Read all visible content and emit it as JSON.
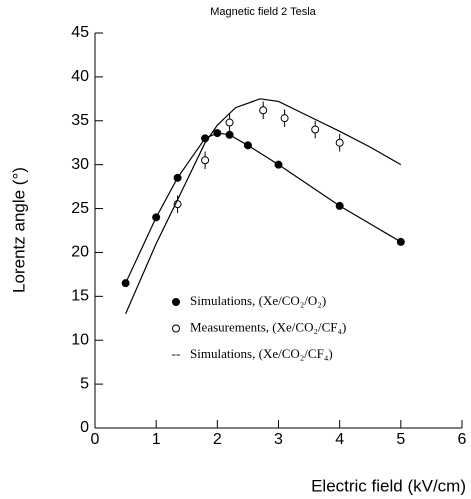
{
  "chart_data": {
    "type": "scatter",
    "title": "Magnetic field 2 Tesla",
    "xlabel": "Electric field (kV/cm)",
    "ylabel": "Lorentz angle (°)",
    "xlim": [
      0,
      6
    ],
    "xticks": [
      0,
      1,
      2,
      3,
      4,
      5,
      6
    ],
    "ylim": [
      0,
      45
    ],
    "yticks": [
      0,
      5,
      10,
      15,
      20,
      25,
      30,
      35,
      40,
      45
    ],
    "series": [
      {
        "name": "Simulations, (Xe/CO₂/O₂)",
        "color": "#000000",
        "marker": "filled",
        "line": true,
        "x": [
          0.5,
          1,
          1.35,
          1.8,
          2,
          2.2,
          2.5,
          3,
          4,
          5
        ],
        "values": [
          16.5,
          24,
          28.5,
          33,
          33.6,
          33.4,
          32.2,
          30,
          25.3,
          21.2
        ]
      },
      {
        "name": "Measurements, (Xe/CO₂/CF₄)",
        "color": "#000000",
        "marker": "open",
        "line": false,
        "x": [
          1.35,
          1.8,
          2.2,
          2.75,
          3.1,
          3.6,
          4
        ],
        "values": [
          25.5,
          30.5,
          34.8,
          36.2,
          35.3,
          34,
          32.5
        ],
        "errors": [
          1,
          1,
          1,
          1,
          1,
          1,
          1
        ]
      },
      {
        "name": "Simulations, (Xe/CO₂/CF₄)",
        "color": "#000000",
        "marker": "none",
        "line": true,
        "x": [
          0.5,
          1,
          1.35,
          1.8,
          2,
          2.3,
          2.7,
          3,
          3.5,
          4,
          4.5,
          5
        ],
        "values": [
          13,
          21,
          26,
          32.5,
          34.5,
          36.5,
          37.5,
          37.2,
          35.5,
          33.8,
          32,
          30
        ]
      }
    ]
  }
}
